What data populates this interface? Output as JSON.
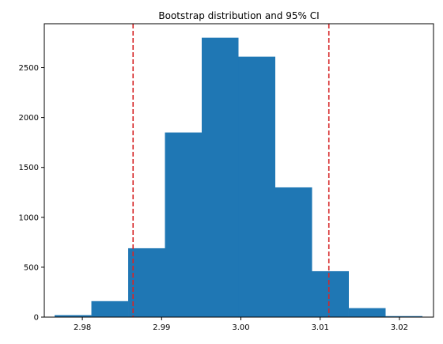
{
  "chart_data": {
    "type": "bar",
    "title": "Bootstrap distribution and 95% CI",
    "xlabel": "",
    "ylabel": "",
    "xlim": [
      2.9752,
      3.0243
    ],
    "ylim": [
      0,
      2940
    ],
    "bins": [
      {
        "x0": 2.9765,
        "x1": 2.98114,
        "value": 20
      },
      {
        "x0": 2.98114,
        "x1": 2.98578,
        "value": 160
      },
      {
        "x0": 2.98578,
        "x1": 2.99042,
        "value": 690
      },
      {
        "x0": 2.99042,
        "x1": 2.99506,
        "value": 1850
      },
      {
        "x0": 2.99506,
        "x1": 2.9997,
        "value": 2800
      },
      {
        "x0": 2.9997,
        "x1": 3.00434,
        "value": 2610
      },
      {
        "x0": 3.00434,
        "x1": 3.00898,
        "value": 1300
      },
      {
        "x0": 3.00898,
        "x1": 3.01362,
        "value": 460
      },
      {
        "x0": 3.01362,
        "x1": 3.01826,
        "value": 90
      },
      {
        "x0": 3.01826,
        "x1": 3.0229,
        "value": 10
      }
    ],
    "ci_lines": [
      2.9864,
      3.0111
    ],
    "x_ticks": [
      {
        "value": 2.98,
        "label": "2.98"
      },
      {
        "value": 2.99,
        "label": "2.99"
      },
      {
        "value": 3.0,
        "label": "3.00"
      },
      {
        "value": 3.01,
        "label": "3.01"
      },
      {
        "value": 3.02,
        "label": "3.02"
      }
    ],
    "y_ticks": [
      {
        "value": 0,
        "label": "0"
      },
      {
        "value": 500,
        "label": "500"
      },
      {
        "value": 1000,
        "label": "1000"
      },
      {
        "value": 1500,
        "label": "1500"
      },
      {
        "value": 2000,
        "label": "2000"
      },
      {
        "value": 2500,
        "label": "2500"
      }
    ],
    "bar_color": "#1f77b4",
    "ci_color": "#d62728",
    "grid": false,
    "legend": "none"
  }
}
